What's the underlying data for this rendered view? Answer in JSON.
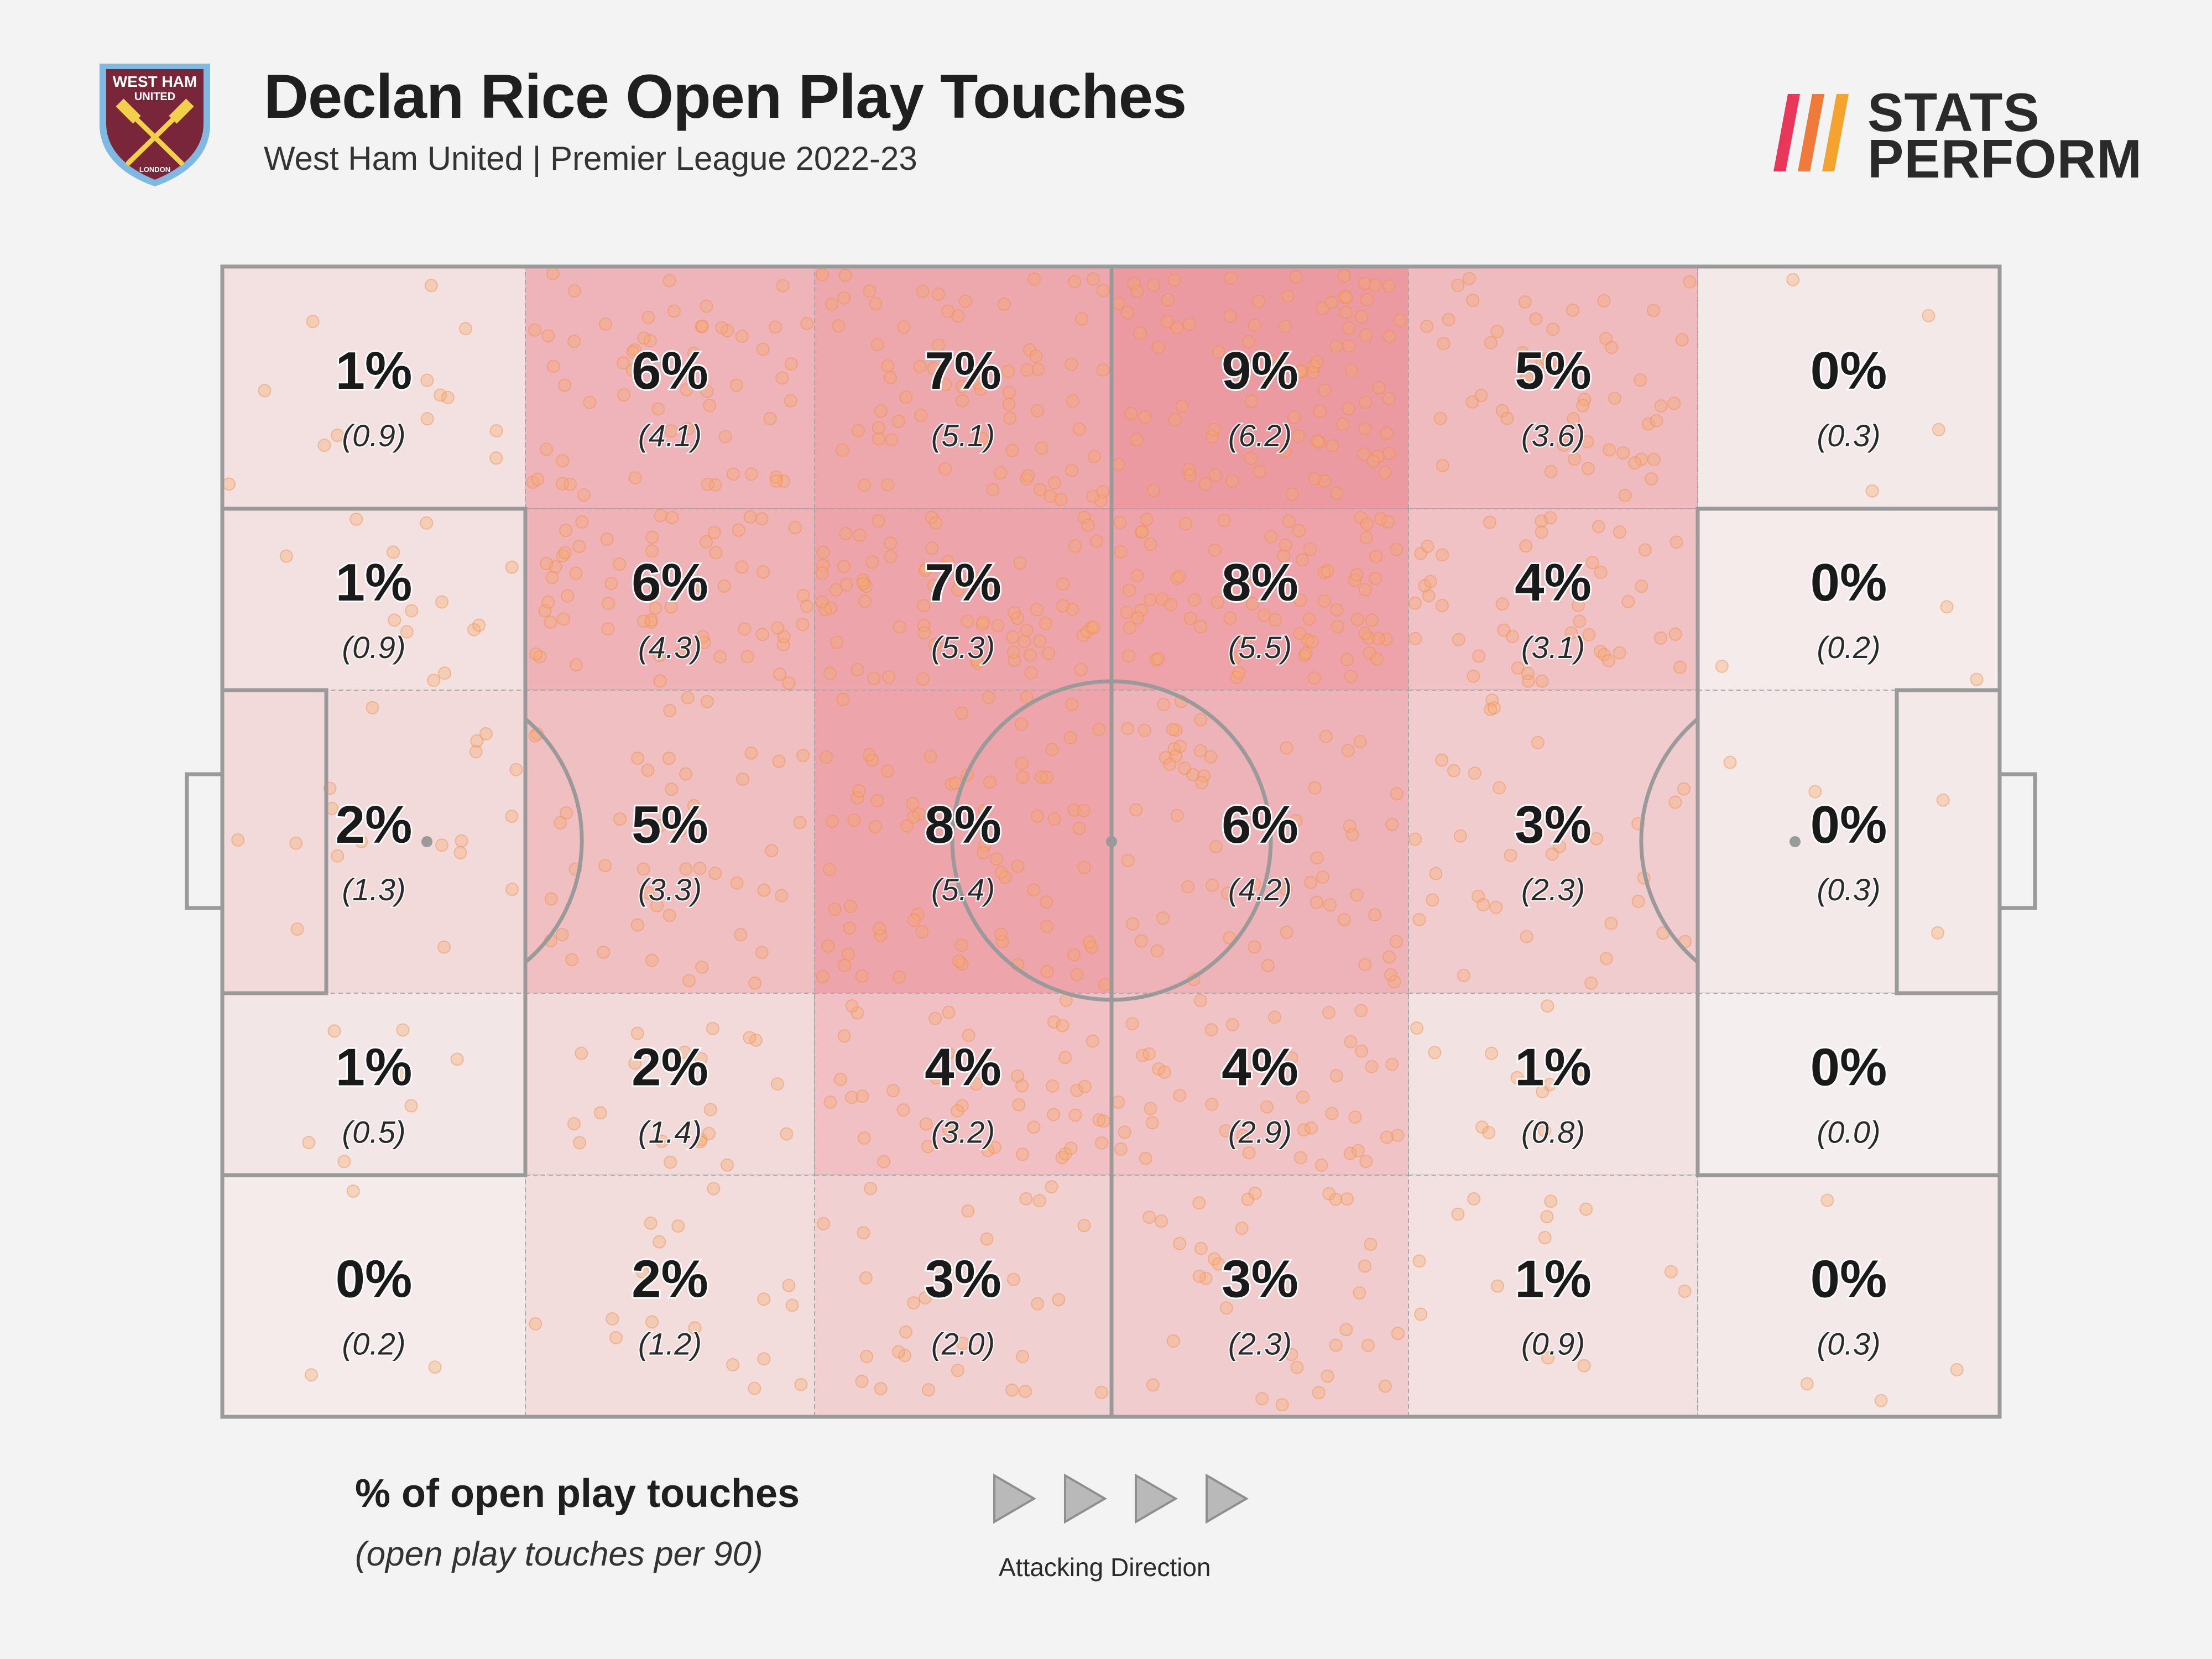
{
  "header": {
    "title": "Declan Rice Open Play Touches",
    "subtitle": "West Ham United | Premier League 2022-23"
  },
  "badge": {
    "text_top": "WEST HAM",
    "text_mid": "UNITED",
    "text_bottom": "LONDON",
    "colors": {
      "claret": "#7a263a",
      "blue": "#7fb8e0",
      "gold": "#f3d04a"
    }
  },
  "brand": {
    "line1": "STATS",
    "line2": "PERFORM",
    "accent": [
      "#e8375a",
      "#f07a3a",
      "#f4a42e"
    ]
  },
  "chart_data": {
    "type": "heatmap",
    "title": "Declan Rice Open Play Touches",
    "description_metric": "% of open play touches",
    "description_secondary": "(open play touches per 90)",
    "columns": 6,
    "rows": 5,
    "grid": [
      [
        {
          "pct": "1%",
          "per90": "(0.9)"
        },
        {
          "pct": "6%",
          "per90": "(4.1)"
        },
        {
          "pct": "7%",
          "per90": "(5.1)"
        },
        {
          "pct": "9%",
          "per90": "(6.2)"
        },
        {
          "pct": "5%",
          "per90": "(3.6)"
        },
        {
          "pct": "0%",
          "per90": "(0.3)"
        }
      ],
      [
        {
          "pct": "1%",
          "per90": "(0.9)"
        },
        {
          "pct": "6%",
          "per90": "(4.3)"
        },
        {
          "pct": "7%",
          "per90": "(5.3)"
        },
        {
          "pct": "8%",
          "per90": "(5.5)"
        },
        {
          "pct": "4%",
          "per90": "(3.1)"
        },
        {
          "pct": "0%",
          "per90": "(0.2)"
        }
      ],
      [
        {
          "pct": "2%",
          "per90": "(1.3)"
        },
        {
          "pct": "5%",
          "per90": "(3.3)"
        },
        {
          "pct": "8%",
          "per90": "(5.4)"
        },
        {
          "pct": "6%",
          "per90": "(4.2)"
        },
        {
          "pct": "3%",
          "per90": "(2.3)"
        },
        {
          "pct": "0%",
          "per90": "(0.3)"
        }
      ],
      [
        {
          "pct": "1%",
          "per90": "(0.5)"
        },
        {
          "pct": "2%",
          "per90": "(1.4)"
        },
        {
          "pct": "4%",
          "per90": "(3.2)"
        },
        {
          "pct": "4%",
          "per90": "(2.9)"
        },
        {
          "pct": "1%",
          "per90": "(0.8)"
        },
        {
          "pct": "0%",
          "per90": "(0.0)"
        }
      ],
      [
        {
          "pct": "0%",
          "per90": "(0.2)"
        },
        {
          "pct": "2%",
          "per90": "(1.2)"
        },
        {
          "pct": "3%",
          "per90": "(2.0)"
        },
        {
          "pct": "3%",
          "per90": "(2.3)"
        },
        {
          "pct": "1%",
          "per90": "(0.9)"
        },
        {
          "pct": "0%",
          "per90": "(0.3)"
        }
      ]
    ],
    "color_scale": {
      "low": "#f4efee",
      "high": "#ec9aa1"
    },
    "scatter_color": "#f6a86a",
    "attacking_direction": "left-to-right"
  },
  "legend": {
    "title": "% of open play touches",
    "subtitle": "(open play touches per 90)",
    "direction_label": "Attacking Direction"
  }
}
